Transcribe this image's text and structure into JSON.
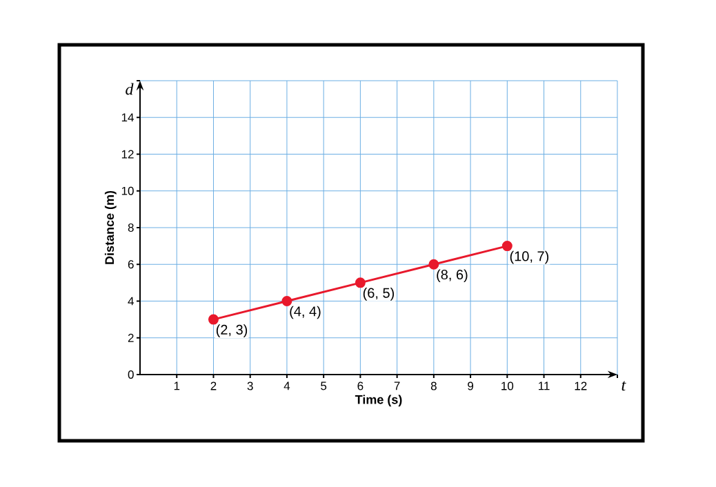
{
  "chart_data": {
    "type": "line",
    "xlabel": "Time (s)",
    "ylabel": "Distance (m)",
    "annotations": [
      "d",
      "t"
    ],
    "x": [
      2,
      4,
      6,
      8,
      10
    ],
    "series": [
      {
        "color": "#e8192c",
        "values": [
          3,
          4,
          5,
          6,
          7
        ]
      }
    ],
    "value_labels": [
      "(2, 3)",
      "(4, 4)",
      "(6, 5)",
      "(8, 6)",
      "(10, 7)"
    ],
    "marker": "circle",
    "line_style": "solid",
    "grid": true,
    "xlim": [
      0,
      13
    ],
    "ylim": [
      0,
      16
    ],
    "xticks": [
      1,
      2,
      3,
      4,
      5,
      6,
      7,
      8,
      9,
      10,
      11,
      12,
      {
        "value": 13,
        "label": null
      }
    ],
    "yticks": [
      {
        "value": 0,
        "label": "0"
      },
      2,
      4,
      6,
      8,
      10,
      12,
      14,
      {
        "value": 16,
        "label": null
      }
    ]
  }
}
